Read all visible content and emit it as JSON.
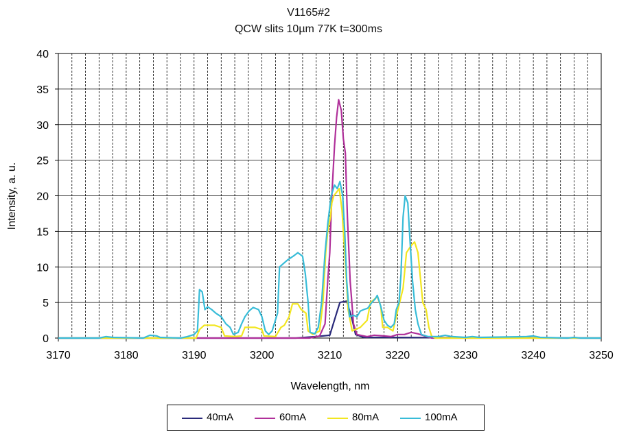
{
  "chart_data": {
    "type": "line",
    "title": "V1165#2",
    "subtitle": "QCW slits 10µm 77K t=300ms",
    "xlabel": "Wavelength, nm",
    "ylabel": "Intensity, a. u.",
    "xlim": [
      3170,
      3250
    ],
    "ylim": [
      0,
      40
    ],
    "x_ticks": [
      3170,
      3180,
      3190,
      3200,
      3210,
      3220,
      3230,
      3240,
      3250
    ],
    "y_ticks": [
      0,
      5,
      10,
      15,
      20,
      25,
      30,
      35,
      40
    ],
    "grid": "dashed-vertical-every-2nm, solid-horizontal-every-5",
    "legend_position": "bottom",
    "series": [
      {
        "name": "40mA",
        "color": "#2a2a7a",
        "points": [
          [
            3170,
            0
          ],
          [
            3205,
            0
          ],
          [
            3208,
            0.2
          ],
          [
            3210,
            0.4
          ],
          [
            3211,
            3.5
          ],
          [
            3211.5,
            5
          ],
          [
            3212.5,
            5.2
          ],
          [
            3213.2,
            3
          ],
          [
            3213.8,
            0.5
          ],
          [
            3215,
            0.1
          ],
          [
            3250,
            0
          ]
        ]
      },
      {
        "name": "60mA",
        "color": "#b0309a",
        "points": [
          [
            3170,
            0
          ],
          [
            3207,
            0
          ],
          [
            3208.5,
            0.3
          ],
          [
            3209.3,
            2
          ],
          [
            3209.7,
            8
          ],
          [
            3210,
            12
          ],
          [
            3210.3,
            20
          ],
          [
            3210.7,
            27
          ],
          [
            3211,
            31
          ],
          [
            3211.3,
            33.5
          ],
          [
            3211.7,
            32
          ],
          [
            3212,
            28
          ],
          [
            3212.3,
            26
          ],
          [
            3212.6,
            17
          ],
          [
            3213,
            8
          ],
          [
            3213.5,
            2
          ],
          [
            3214,
            0.5
          ],
          [
            3215.5,
            0.2
          ],
          [
            3216.5,
            0.4
          ],
          [
            3218,
            0.3
          ],
          [
            3219,
            0.2
          ],
          [
            3220,
            0.5
          ],
          [
            3221,
            0.5
          ],
          [
            3222,
            0.8
          ],
          [
            3223,
            0.6
          ],
          [
            3224,
            0.3
          ],
          [
            3225,
            0
          ],
          [
            3250,
            0
          ]
        ]
      },
      {
        "name": "80mA",
        "color": "#f2e620",
        "points": [
          [
            3170,
            0
          ],
          [
            3190.3,
            0
          ],
          [
            3190.8,
            1.2
          ],
          [
            3191.5,
            1.8
          ],
          [
            3193,
            1.8
          ],
          [
            3194,
            1.5
          ],
          [
            3194.5,
            0.3
          ],
          [
            3196,
            0.2
          ],
          [
            3197,
            0.3
          ],
          [
            3197.5,
            1.5
          ],
          [
            3199,
            1.5
          ],
          [
            3200,
            1.2
          ],
          [
            3200.3,
            0.3
          ],
          [
            3202,
            0.2
          ],
          [
            3202.8,
            1.5
          ],
          [
            3203.3,
            1.8
          ],
          [
            3204,
            3
          ],
          [
            3204.5,
            4.8
          ],
          [
            3205.3,
            4.8
          ],
          [
            3205.8,
            4
          ],
          [
            3206.5,
            3.5
          ],
          [
            3206.8,
            1
          ],
          [
            3207.5,
            0.5
          ],
          [
            3208.5,
            1
          ],
          [
            3209,
            5
          ],
          [
            3209.4,
            12
          ],
          [
            3209.7,
            15
          ],
          [
            3210.1,
            17
          ],
          [
            3210.3,
            19
          ],
          [
            3210.6,
            20
          ],
          [
            3211,
            20.5
          ],
          [
            3211.4,
            21
          ],
          [
            3211.8,
            18
          ],
          [
            3212.2,
            12
          ],
          [
            3212.7,
            4
          ],
          [
            3213.3,
            1
          ],
          [
            3214.5,
            1.5
          ],
          [
            3215.5,
            2.5
          ],
          [
            3216,
            5
          ],
          [
            3217,
            5.8
          ],
          [
            3217.5,
            4.5
          ],
          [
            3217.8,
            1.5
          ],
          [
            3218.5,
            1.5
          ],
          [
            3219.3,
            1
          ],
          [
            3219.8,
            3
          ],
          [
            3220.3,
            5
          ],
          [
            3220.8,
            7
          ],
          [
            3221.3,
            12
          ],
          [
            3222,
            13
          ],
          [
            3222.5,
            13.5
          ],
          [
            3223,
            12
          ],
          [
            3223.4,
            8
          ],
          [
            3223.7,
            5
          ],
          [
            3224.2,
            4
          ],
          [
            3224.6,
            1.5
          ],
          [
            3225,
            0.3
          ],
          [
            3225.5,
            0
          ],
          [
            3250,
            0
          ]
        ]
      },
      {
        "name": "100mA",
        "color": "#38bcd8",
        "points": [
          [
            3170,
            0
          ],
          [
            3176,
            0
          ],
          [
            3177,
            0.2
          ],
          [
            3178,
            0.1
          ],
          [
            3182.5,
            0
          ],
          [
            3183.5,
            0.4
          ],
          [
            3184.5,
            0.3
          ],
          [
            3185,
            0.1
          ],
          [
            3188,
            0
          ],
          [
            3189,
            0.2
          ],
          [
            3190,
            0.5
          ],
          [
            3190.5,
            1
          ],
          [
            3190.8,
            6.8
          ],
          [
            3191.2,
            6.5
          ],
          [
            3191.6,
            4
          ],
          [
            3192,
            4.4
          ],
          [
            3192.6,
            4
          ],
          [
            3193.2,
            3.5
          ],
          [
            3194,
            3
          ],
          [
            3194.7,
            2
          ],
          [
            3195.3,
            1.5
          ],
          [
            3195.8,
            0.5
          ],
          [
            3196.5,
            0.8
          ],
          [
            3197,
            2
          ],
          [
            3197.5,
            3
          ],
          [
            3198.1,
            3.8
          ],
          [
            3198.7,
            4.3
          ],
          [
            3199.5,
            4
          ],
          [
            3200,
            3
          ],
          [
            3200.5,
            1
          ],
          [
            3201,
            0.5
          ],
          [
            3201.5,
            1
          ],
          [
            3202.3,
            3.5
          ],
          [
            3202.6,
            10
          ],
          [
            3203.2,
            10.5
          ],
          [
            3203.8,
            11
          ],
          [
            3204.6,
            11.5
          ],
          [
            3205.3,
            12
          ],
          [
            3206,
            11.5
          ],
          [
            3206.4,
            9
          ],
          [
            3206.8,
            5
          ],
          [
            3207.1,
            0.8
          ],
          [
            3207.8,
            0.6
          ],
          [
            3208.3,
            1.5
          ],
          [
            3208.8,
            5
          ],
          [
            3209.3,
            12
          ],
          [
            3209.7,
            16
          ],
          [
            3210.2,
            20
          ],
          [
            3210.7,
            21.5
          ],
          [
            3211.1,
            21
          ],
          [
            3211.5,
            22
          ],
          [
            3211.9,
            20
          ],
          [
            3212.2,
            15
          ],
          [
            3212.5,
            8
          ],
          [
            3212.9,
            3
          ],
          [
            3213.5,
            3.2
          ],
          [
            3214,
            3
          ],
          [
            3214.5,
            3.8
          ],
          [
            3215,
            4
          ],
          [
            3215.6,
            4.2
          ],
          [
            3216.2,
            5
          ],
          [
            3216.7,
            5.5
          ],
          [
            3217,
            6
          ],
          [
            3217.5,
            4.5
          ],
          [
            3218,
            2.5
          ],
          [
            3218.5,
            1.8
          ],
          [
            3219,
            1.5
          ],
          [
            3219.5,
            2
          ],
          [
            3219.8,
            4
          ],
          [
            3220.2,
            5
          ],
          [
            3220.5,
            9
          ],
          [
            3220.8,
            17
          ],
          [
            3221.1,
            20
          ],
          [
            3221.5,
            19
          ],
          [
            3221.8,
            14
          ],
          [
            3222.2,
            8
          ],
          [
            3222.6,
            4
          ],
          [
            3223,
            2
          ],
          [
            3223.5,
            0.5
          ],
          [
            3224.5,
            0.2
          ],
          [
            3226,
            0.2
          ],
          [
            3227,
            0.4
          ],
          [
            3228,
            0.2
          ],
          [
            3230,
            0.1
          ],
          [
            3231,
            0.2
          ],
          [
            3232,
            0.1
          ],
          [
            3239,
            0.2
          ],
          [
            3240,
            0.3
          ],
          [
            3241,
            0.1
          ],
          [
            3245,
            0
          ],
          [
            3246,
            0.1
          ],
          [
            3247,
            0
          ],
          [
            3250,
            0
          ]
        ]
      }
    ]
  }
}
